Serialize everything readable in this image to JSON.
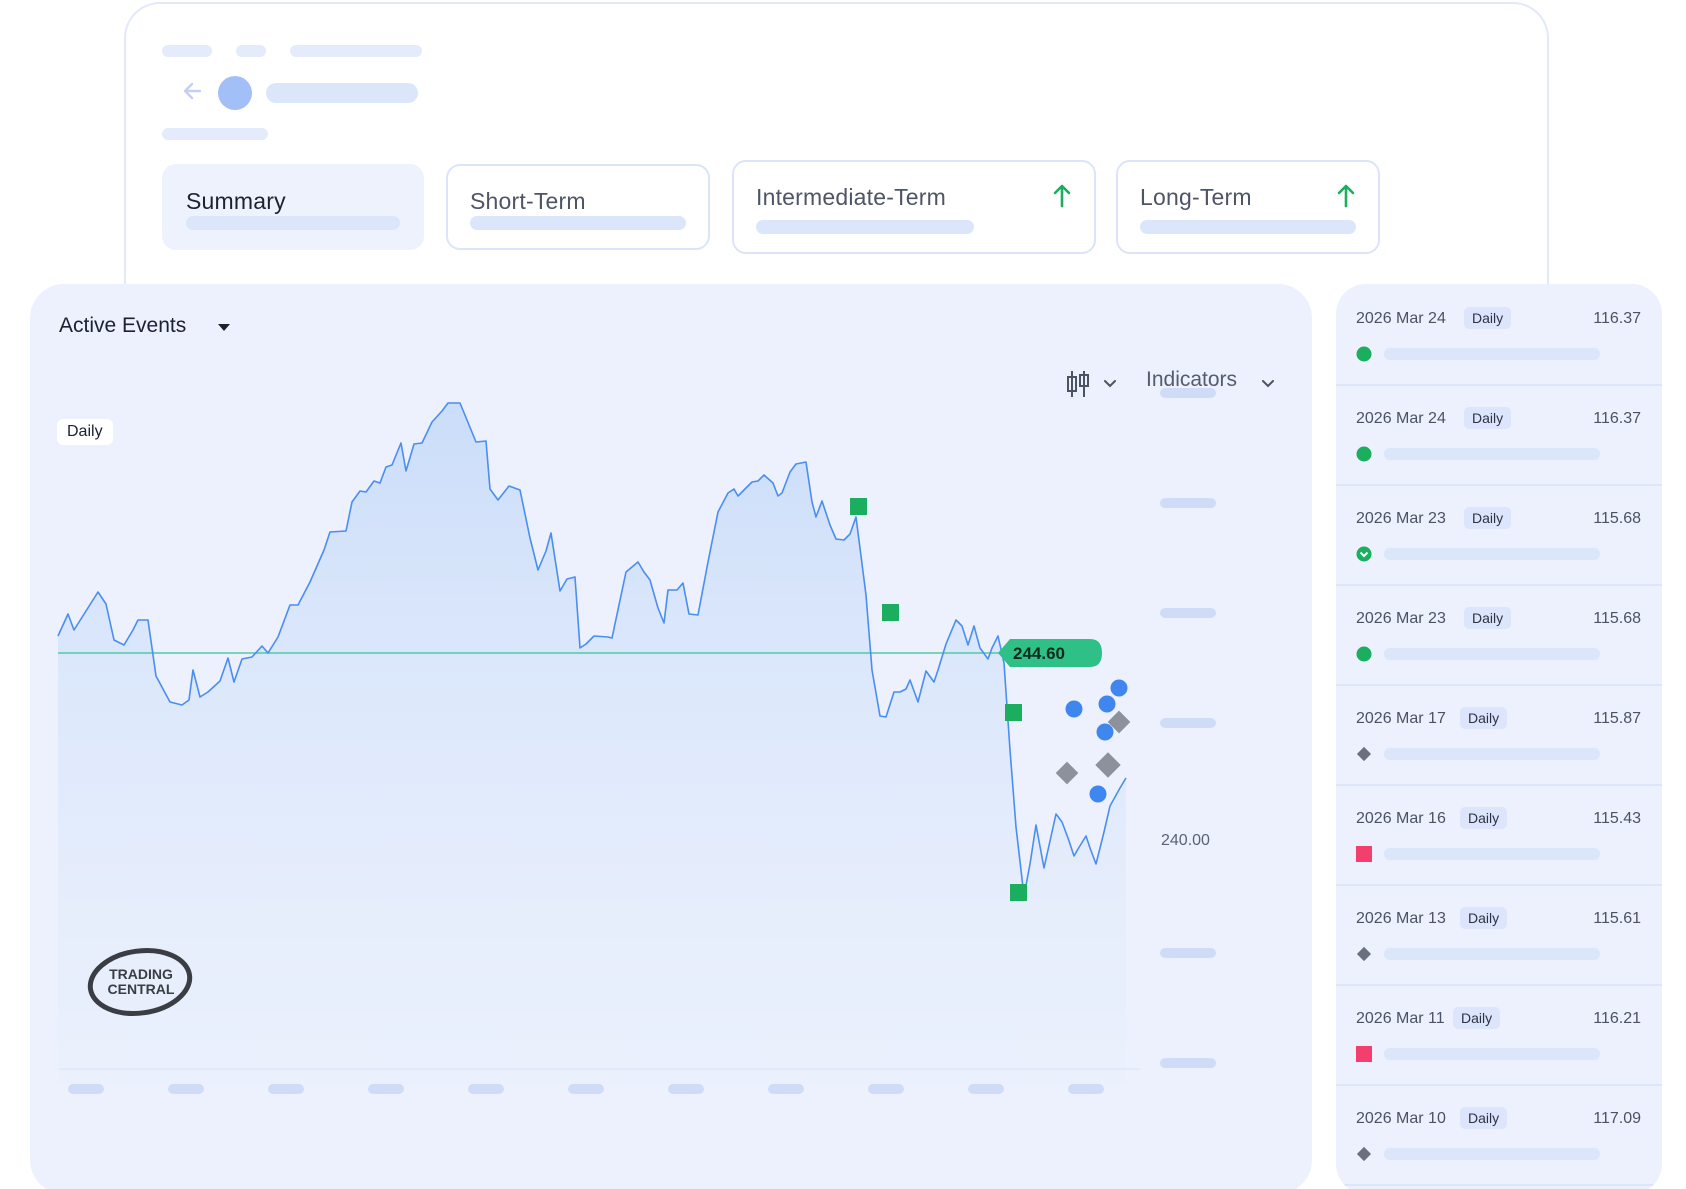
{
  "header_tabs": [
    {
      "label": "Summary",
      "active": true,
      "trend": ""
    },
    {
      "label": "Short-Term",
      "active": false,
      "trend": ""
    },
    {
      "label": "Intermediate-Term",
      "active": false,
      "trend": "up"
    },
    {
      "label": "Long-Term",
      "active": false,
      "trend": "up"
    }
  ],
  "chart_card": {
    "title": "Active Events",
    "indicators_label": "Indicators",
    "timeframe_chip": "Daily",
    "last_price": "244.60",
    "axis_value": "240.00",
    "logo_line1": "TRADING",
    "logo_line2": "CENTRAL"
  },
  "colors": {
    "accent_blue": "#4a8ef0",
    "line_green": "#3cbf8f",
    "signal_green": "#1aae5e",
    "signal_red": "#f23f6d",
    "signal_gray": "#6b7080"
  },
  "events": [
    {
      "date": "2026 Mar 24",
      "badge": "Daily",
      "value": "116.37",
      "marker": "green-circle-icon"
    },
    {
      "date": "2026 Mar 24",
      "badge": "Daily",
      "value": "116.37",
      "marker": "green-circle-icon"
    },
    {
      "date": "2026 Mar 23",
      "badge": "Daily",
      "value": "115.68",
      "marker": "green-down-chevron-icon"
    },
    {
      "date": "2026 Mar 23",
      "badge": "Daily",
      "value": "115.68",
      "marker": "green-circle-icon"
    },
    {
      "date": "2026 Mar 17",
      "badge": "Daily",
      "value": "115.87",
      "marker": "gray-diamond-icon"
    },
    {
      "date": "2026 Mar 16",
      "badge": "Daily",
      "value": "115.43",
      "marker": "red-square-icon"
    },
    {
      "date": "2026 Mar 13",
      "badge": "Daily",
      "value": "115.61",
      "marker": "gray-diamond-icon"
    },
    {
      "date": "2026 Mar 11",
      "badge": "Daily",
      "value": "116.21",
      "marker": "red-square-icon"
    },
    {
      "date": "2026 Mar 10",
      "badge": "Daily",
      "value": "117.09",
      "marker": "gray-diamond-icon"
    }
  ]
}
